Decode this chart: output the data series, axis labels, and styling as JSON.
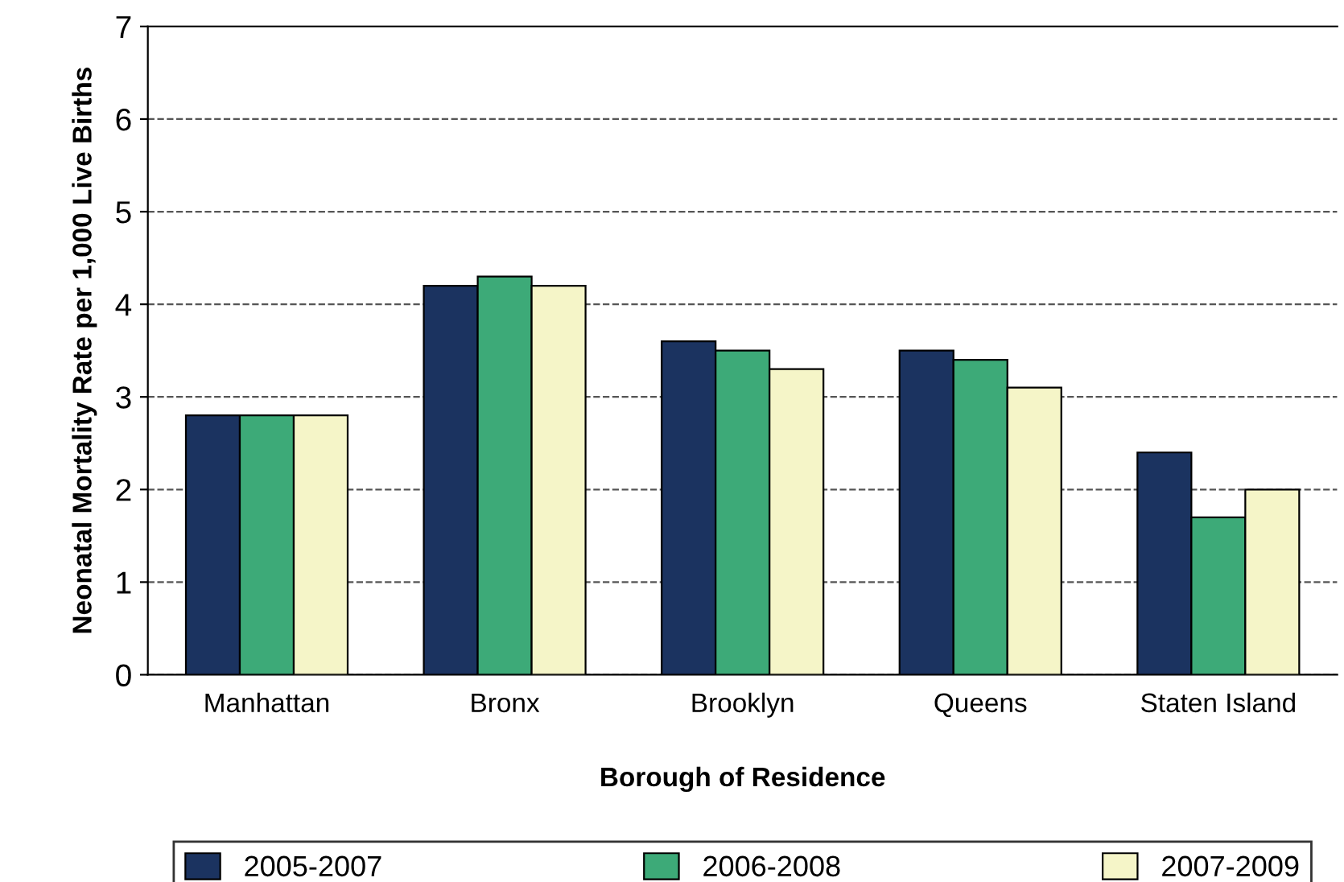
{
  "chart_data": {
    "type": "bar",
    "xlabel": "Borough of Residence",
    "ylabel": "Neonatal Mortality Rate per 1,000 Live Births",
    "categories": [
      "Manhattan",
      "Bronx",
      "Brooklyn",
      "Queens",
      "Staten Island"
    ],
    "series": [
      {
        "name": "2005-2007",
        "color": "#1b3360",
        "values": [
          2.8,
          4.2,
          3.6,
          3.5,
          2.4
        ]
      },
      {
        "name": "2006-2008",
        "color": "#3daa78",
        "values": [
          2.8,
          4.3,
          3.5,
          3.4,
          1.7
        ]
      },
      {
        "name": "2007-2009",
        "color": "#f5f5c8",
        "values": [
          2.8,
          4.2,
          3.3,
          3.1,
          2.0
        ]
      }
    ],
    "ylim": [
      0,
      7
    ],
    "yticks": [
      0,
      1,
      2,
      3,
      4,
      5,
      6,
      7
    ],
    "grid": "y",
    "legend": "bottom"
  }
}
